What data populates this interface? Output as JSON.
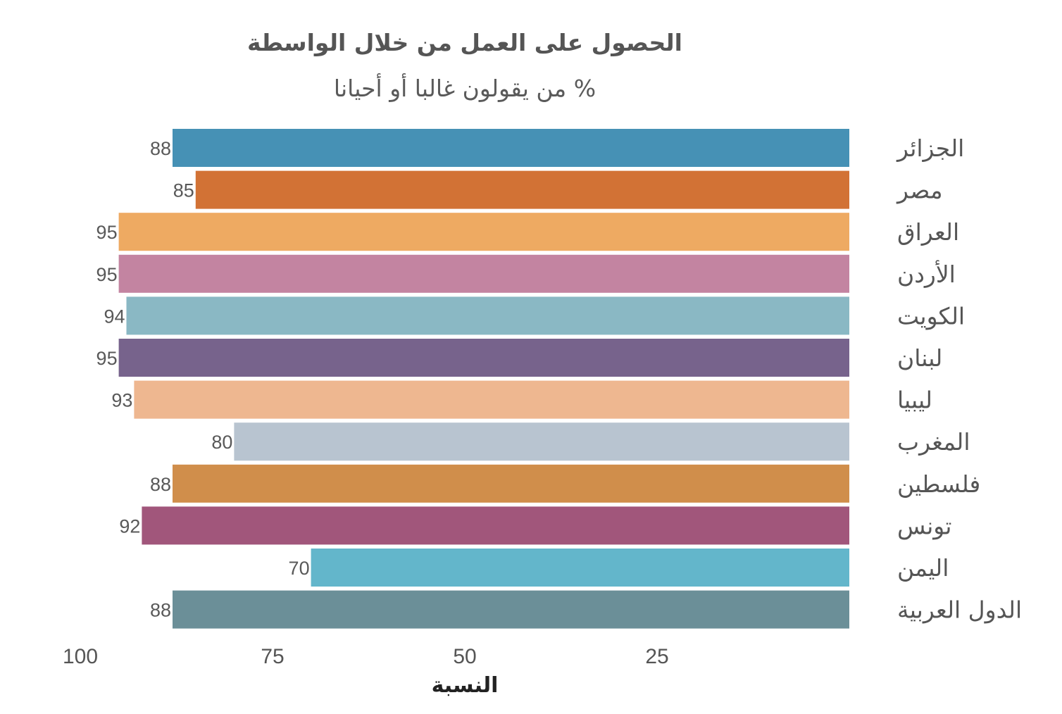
{
  "chart_data": {
    "type": "bar",
    "orientation": "horizontal",
    "x_direction": "reversed",
    "title": "الحصول على العمل من خلال الواسطة",
    "subtitle": "% من يقولون غالبا أو أحيانا",
    "xlabel": "النسبة",
    "ylabel": "",
    "xlim": [
      0,
      100
    ],
    "xticks": [
      100,
      75,
      50,
      25
    ],
    "grid": false,
    "legend": "none",
    "categories": [
      "الجزائر",
      "مصر",
      "العراق",
      "الأردن",
      "الكويت",
      "لبنان",
      "ليبيا",
      "المغرب",
      "فلسطين",
      "تونس",
      "اليمن",
      "الدول العربية"
    ],
    "values": [
      88,
      85,
      95,
      95,
      94,
      95,
      93,
      80,
      88,
      92,
      70,
      88
    ],
    "colors": [
      "#4691b5",
      "#d27235",
      "#eeaa62",
      "#c384a1",
      "#8ab8c4",
      "#77638c",
      "#eeb790",
      "#b8c4d0",
      "#d08e4b",
      "#a1567b",
      "#63b6cb",
      "#6b8f98"
    ]
  }
}
